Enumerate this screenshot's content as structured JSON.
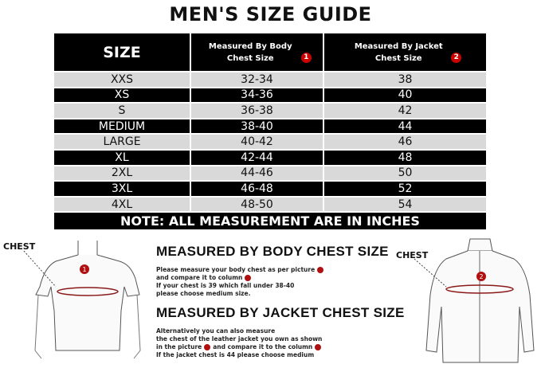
{
  "title": "MEN'S SIZE GUIDE",
  "table": {
    "headers": {
      "size": "SIZE",
      "body": "Measured By Body Chest Size",
      "body_badge": "1",
      "jacket": "Measured By Jacket Chest Size",
      "jacket_badge": "2"
    },
    "rows": [
      {
        "size": "XXS",
        "body": "32-34",
        "jacket": "38"
      },
      {
        "size": "XS",
        "body": "34-36",
        "jacket": "40"
      },
      {
        "size": "S",
        "body": "36-38",
        "jacket": "42"
      },
      {
        "size": "MEDIUM",
        "body": "38-40",
        "jacket": "44"
      },
      {
        "size": "LARGE",
        "body": "40-42",
        "jacket": "46"
      },
      {
        "size": "XL",
        "body": "42-44",
        "jacket": "48"
      },
      {
        "size": "2XL",
        "body": "44-46",
        "jacket": "50"
      },
      {
        "size": "3XL",
        "body": "46-48",
        "jacket": "52"
      },
      {
        "size": "4XL",
        "body": "48-50",
        "jacket": "54"
      }
    ],
    "note": "NOTE: ALL MEASUREMENT ARE IN INCHES"
  },
  "body_section": {
    "heading": "MEASURED BY BODY CHEST SIZE",
    "lines": [
      "Please measure your body chest as per picture",
      "and compare it to column",
      "If your chest is 39 which fall under 38-40",
      "please choose medium size."
    ]
  },
  "jacket_section": {
    "heading": "MEASURED BY JACKET CHEST SIZE",
    "lines": [
      "Alternatively you can also measure",
      "the chest of the leather jacket you own as shown",
      "in the picture",
      "and compare it to the column",
      "If the jacket chest is 44 please choose medium"
    ]
  },
  "figures": {
    "body_label": "CHEST",
    "body_badge": "1",
    "jacket_label": "CHEST",
    "jacket_badge": "2"
  },
  "colors": {
    "header": "#000000",
    "row_light": "#d9d9d9",
    "badge": "#cc0000"
  }
}
